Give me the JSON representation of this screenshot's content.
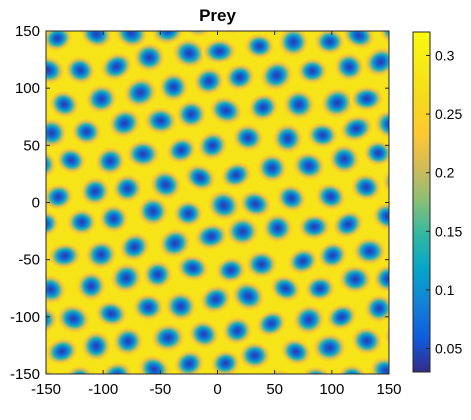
{
  "chart_data": {
    "type": "heatmap",
    "title": "Prey",
    "xlabel": "",
    "ylabel": "",
    "xlim": [
      -150,
      150
    ],
    "ylim": [
      -150,
      150
    ],
    "x_ticks": [
      -150,
      -100,
      -50,
      0,
      50,
      100,
      150
    ],
    "y_ticks": [
      -150,
      -100,
      -50,
      0,
      50,
      100,
      150
    ],
    "colormap": "parula",
    "clim": [
      0.03,
      0.32
    ],
    "colorbar_ticks": [
      0.05,
      0.1,
      0.15,
      0.2,
      0.25,
      0.3
    ],
    "colorbar_position": "right",
    "pattern": "hexagonal array of low-density spots (~0.04) on a high background (~0.28)",
    "background_value": 0.28,
    "spot_min_value": 0.04,
    "spot_spacing": 31
  }
}
